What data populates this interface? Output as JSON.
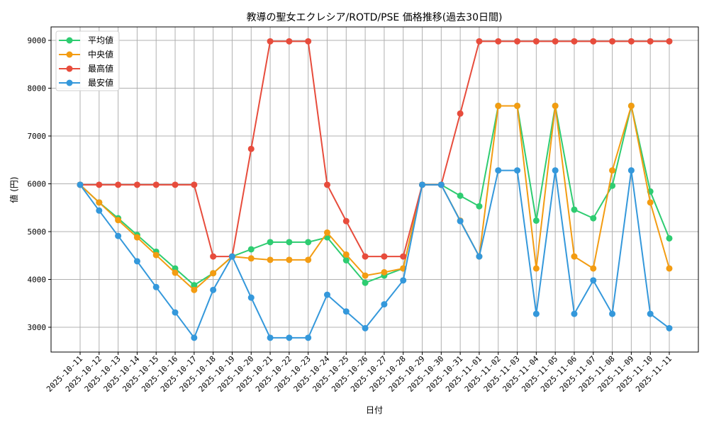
{
  "chart_data": {
    "type": "line",
    "title": "教導の聖女エクレシア/ROTD/PSE 価格推移(過去30日間)",
    "xlabel": "日付",
    "ylabel": "値 (円)",
    "ylim": [
      2450,
      9230
    ],
    "yticks": [
      3000,
      4000,
      5000,
      6000,
      7000,
      8000,
      9000
    ],
    "grid": true,
    "legend_position": "upper left",
    "x": [
      "2025-10-11",
      "2025-10-12",
      "2025-10-13",
      "2025-10-14",
      "2025-10-15",
      "2025-10-16",
      "2025-10-17",
      "2025-10-18",
      "2025-10-19",
      "2025-10-20",
      "2025-10-21",
      "2025-10-22",
      "2025-10-23",
      "2025-10-24",
      "2025-10-25",
      "2025-10-26",
      "2025-10-27",
      "2025-10-28",
      "2025-10-29",
      "2025-10-30",
      "2025-10-31",
      "2025-11-01",
      "2025-11-02",
      "2025-11-03",
      "2025-11-04",
      "2025-11-05",
      "2025-11-06",
      "2025-11-07",
      "2025-11-08",
      "2025-11-09",
      "2025-11-10",
      "2025-11-11"
    ],
    "series": [
      {
        "name": "平均値",
        "color": "#2ecc71",
        "values": [
          5980,
          5610,
          5280,
          4930,
          4580,
          4230,
          3880,
          4130,
          4480,
          4630,
          4780,
          4780,
          4780,
          4880,
          4400,
          3930,
          4080,
          4230,
          5980,
          5980,
          5750,
          5530,
          7630,
          7630,
          5230,
          7630,
          5460,
          5280,
          5960,
          7630,
          5840,
          4860
        ]
      },
      {
        "name": "中央値",
        "color": "#f39c12",
        "values": [
          5980,
          5610,
          5240,
          4880,
          4510,
          4140,
          3780,
          4130,
          4480,
          4440,
          4410,
          4410,
          4410,
          4980,
          4520,
          4080,
          4150,
          4230,
          5980,
          5980,
          5230,
          4480,
          7630,
          7630,
          4230,
          7630,
          4480,
          4230,
          6280,
          7630,
          5610,
          4230
        ]
      },
      {
        "name": "最高値",
        "color": "#e74c3c",
        "values": [
          5980,
          5980,
          5980,
          5980,
          5980,
          5980,
          5980,
          4480,
          4480,
          6730,
          8980,
          8980,
          8980,
          5980,
          5220,
          4480,
          4480,
          4480,
          5980,
          5980,
          7470,
          8980,
          8980,
          8980,
          8980,
          8980,
          8980,
          8980,
          8980,
          8980,
          8980,
          8980
        ]
      },
      {
        "name": "最安値",
        "color": "#3498db",
        "values": [
          5980,
          5440,
          4910,
          4380,
          3840,
          3310,
          2780,
          3780,
          4480,
          3620,
          2780,
          2780,
          2780,
          3680,
          3330,
          2980,
          3480,
          3980,
          5980,
          5980,
          5220,
          4480,
          6280,
          6280,
          3280,
          6280,
          3280,
          3980,
          3280,
          6280,
          3280,
          2980
        ]
      }
    ]
  }
}
